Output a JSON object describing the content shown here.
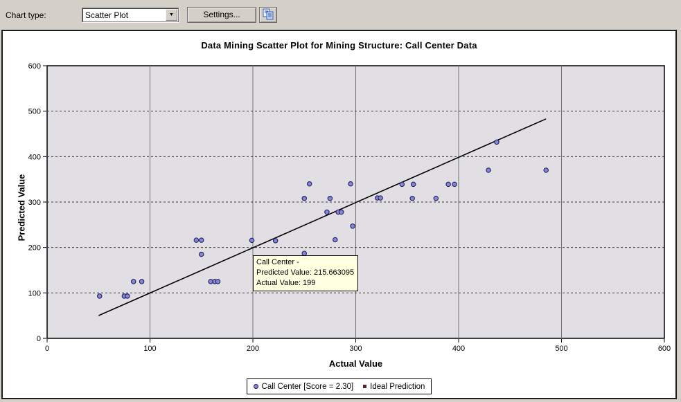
{
  "toolbar": {
    "chart_type_label": "Chart type:",
    "chart_type_value": "Scatter Plot",
    "settings_button": "Settings..."
  },
  "chart_data": {
    "type": "scatter",
    "title": "Data Mining Scatter Plot for Mining Structure: Call Center Data",
    "xlabel": "Actual Value",
    "ylabel": "Predicted Value",
    "xlim": [
      0,
      600
    ],
    "ylim": [
      0,
      600
    ],
    "x_ticks": [
      "0",
      "100",
      "200",
      "300",
      "400",
      "500",
      "600"
    ],
    "y_ticks": [
      "0",
      "100",
      "200",
      "300",
      "400",
      "500",
      "600"
    ],
    "grid": {
      "vertical": "solid",
      "horizontal": "dashed"
    },
    "legend_position": "bottom-center",
    "series": [
      {
        "name": "Call Center [Score = 2.30]",
        "type": "scatter",
        "marker": "circle",
        "points": [
          [
            51,
            93
          ],
          [
            75,
            93
          ],
          [
            78,
            93
          ],
          [
            84,
            125
          ],
          [
            92,
            125
          ],
          [
            145,
            216
          ],
          [
            150,
            216
          ],
          [
            150,
            185
          ],
          [
            159,
            125
          ],
          [
            163,
            125
          ],
          [
            166,
            125
          ],
          [
            199,
            215.663095
          ],
          [
            222,
            215
          ],
          [
            250,
            187
          ],
          [
            250,
            308
          ],
          [
            255,
            340
          ],
          [
            272,
            278
          ],
          [
            275,
            308
          ],
          [
            283,
            278
          ],
          [
            286,
            278
          ],
          [
            280,
            217
          ],
          [
            295,
            340
          ],
          [
            297,
            247
          ],
          [
            321,
            309
          ],
          [
            324,
            309
          ],
          [
            345,
            339
          ],
          [
            356,
            339
          ],
          [
            355,
            308
          ],
          [
            378,
            308
          ],
          [
            390,
            339
          ],
          [
            396,
            339
          ],
          [
            429,
            370
          ],
          [
            437,
            432
          ],
          [
            485,
            370
          ]
        ]
      },
      {
        "name": "Ideal Prediction",
        "type": "line",
        "points": [
          [
            50,
            50
          ],
          [
            485,
            483
          ]
        ]
      }
    ]
  },
  "tooltip": {
    "line1": "Call Center -",
    "line2": "Predicted Value: 215.663095",
    "line3": "Actual Value: 199"
  },
  "legend": {
    "items": [
      {
        "label": "Call Center [Score = 2.30]",
        "marker": "circle"
      },
      {
        "label": "Ideal Prediction",
        "marker": "square"
      }
    ]
  },
  "colors": {
    "point_fill": "#8686d9",
    "point_stroke": "#22225a",
    "plot_bg": "#e2dfe4",
    "plot_border": "#000000",
    "grid_vertical": "#707070",
    "grid_horizontal": "#3a3a3a",
    "ideal_line": "#000000",
    "tooltip_bg": "#ffffe1",
    "legend_square": "#5a2222",
    "toolbar_bg": "#d4d0c8",
    "copy_icon_blue": "#3a62b0"
  }
}
